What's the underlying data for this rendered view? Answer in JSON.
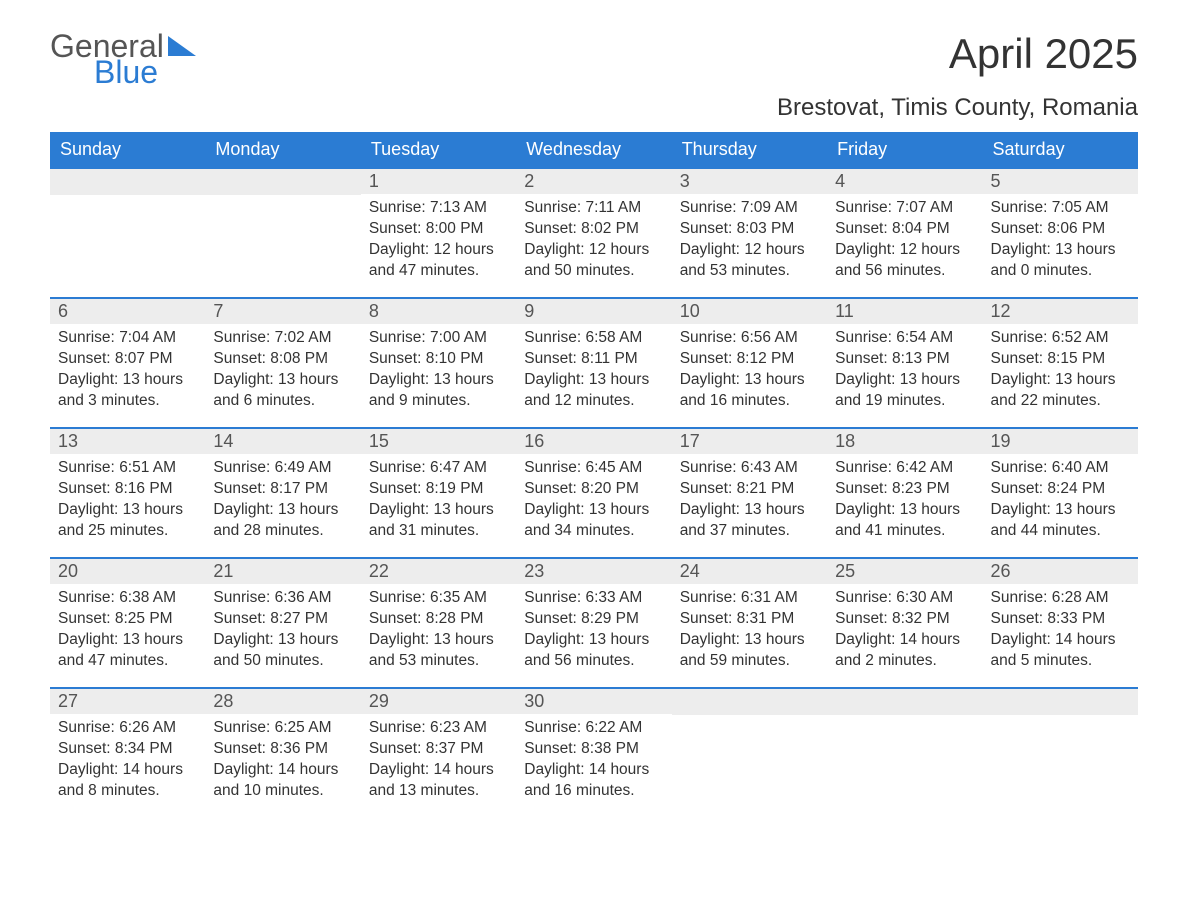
{
  "logo": {
    "part1": "General",
    "part2": "Blue"
  },
  "title": "April 2025",
  "subtitle": "Brestovat, Timis County, Romania",
  "colors": {
    "accent": "#2b7cd3",
    "header_bg": "#2b7cd3",
    "header_text": "#ffffff",
    "daynum_bg": "#ededed",
    "daynum_text": "#555555",
    "body_text": "#333333",
    "page_bg": "#ffffff"
  },
  "layout": {
    "columns": 7,
    "rows": 5,
    "cell_border_top": "2px solid #2b7cd3",
    "title_fontsize": 42,
    "subtitle_fontsize": 24,
    "header_fontsize": 18,
    "daynum_fontsize": 18,
    "body_fontsize": 15.5
  },
  "weekdays": [
    "Sunday",
    "Monday",
    "Tuesday",
    "Wednesday",
    "Thursday",
    "Friday",
    "Saturday"
  ],
  "weeks": [
    [
      null,
      null,
      {
        "n": "1",
        "sunrise": "7:13 AM",
        "sunset": "8:00 PM",
        "daylight": "12 hours and 47 minutes."
      },
      {
        "n": "2",
        "sunrise": "7:11 AM",
        "sunset": "8:02 PM",
        "daylight": "12 hours and 50 minutes."
      },
      {
        "n": "3",
        "sunrise": "7:09 AM",
        "sunset": "8:03 PM",
        "daylight": "12 hours and 53 minutes."
      },
      {
        "n": "4",
        "sunrise": "7:07 AM",
        "sunset": "8:04 PM",
        "daylight": "12 hours and 56 minutes."
      },
      {
        "n": "5",
        "sunrise": "7:05 AM",
        "sunset": "8:06 PM",
        "daylight": "13 hours and 0 minutes."
      }
    ],
    [
      {
        "n": "6",
        "sunrise": "7:04 AM",
        "sunset": "8:07 PM",
        "daylight": "13 hours and 3 minutes."
      },
      {
        "n": "7",
        "sunrise": "7:02 AM",
        "sunset": "8:08 PM",
        "daylight": "13 hours and 6 minutes."
      },
      {
        "n": "8",
        "sunrise": "7:00 AM",
        "sunset": "8:10 PM",
        "daylight": "13 hours and 9 minutes."
      },
      {
        "n": "9",
        "sunrise": "6:58 AM",
        "sunset": "8:11 PM",
        "daylight": "13 hours and 12 minutes."
      },
      {
        "n": "10",
        "sunrise": "6:56 AM",
        "sunset": "8:12 PM",
        "daylight": "13 hours and 16 minutes."
      },
      {
        "n": "11",
        "sunrise": "6:54 AM",
        "sunset": "8:13 PM",
        "daylight": "13 hours and 19 minutes."
      },
      {
        "n": "12",
        "sunrise": "6:52 AM",
        "sunset": "8:15 PM",
        "daylight": "13 hours and 22 minutes."
      }
    ],
    [
      {
        "n": "13",
        "sunrise": "6:51 AM",
        "sunset": "8:16 PM",
        "daylight": "13 hours and 25 minutes."
      },
      {
        "n": "14",
        "sunrise": "6:49 AM",
        "sunset": "8:17 PM",
        "daylight": "13 hours and 28 minutes."
      },
      {
        "n": "15",
        "sunrise": "6:47 AM",
        "sunset": "8:19 PM",
        "daylight": "13 hours and 31 minutes."
      },
      {
        "n": "16",
        "sunrise": "6:45 AM",
        "sunset": "8:20 PM",
        "daylight": "13 hours and 34 minutes."
      },
      {
        "n": "17",
        "sunrise": "6:43 AM",
        "sunset": "8:21 PM",
        "daylight": "13 hours and 37 minutes."
      },
      {
        "n": "18",
        "sunrise": "6:42 AM",
        "sunset": "8:23 PM",
        "daylight": "13 hours and 41 minutes."
      },
      {
        "n": "19",
        "sunrise": "6:40 AM",
        "sunset": "8:24 PM",
        "daylight": "13 hours and 44 minutes."
      }
    ],
    [
      {
        "n": "20",
        "sunrise": "6:38 AM",
        "sunset": "8:25 PM",
        "daylight": "13 hours and 47 minutes."
      },
      {
        "n": "21",
        "sunrise": "6:36 AM",
        "sunset": "8:27 PM",
        "daylight": "13 hours and 50 minutes."
      },
      {
        "n": "22",
        "sunrise": "6:35 AM",
        "sunset": "8:28 PM",
        "daylight": "13 hours and 53 minutes."
      },
      {
        "n": "23",
        "sunrise": "6:33 AM",
        "sunset": "8:29 PM",
        "daylight": "13 hours and 56 minutes."
      },
      {
        "n": "24",
        "sunrise": "6:31 AM",
        "sunset": "8:31 PM",
        "daylight": "13 hours and 59 minutes."
      },
      {
        "n": "25",
        "sunrise": "6:30 AM",
        "sunset": "8:32 PM",
        "daylight": "14 hours and 2 minutes."
      },
      {
        "n": "26",
        "sunrise": "6:28 AM",
        "sunset": "8:33 PM",
        "daylight": "14 hours and 5 minutes."
      }
    ],
    [
      {
        "n": "27",
        "sunrise": "6:26 AM",
        "sunset": "8:34 PM",
        "daylight": "14 hours and 8 minutes."
      },
      {
        "n": "28",
        "sunrise": "6:25 AM",
        "sunset": "8:36 PM",
        "daylight": "14 hours and 10 minutes."
      },
      {
        "n": "29",
        "sunrise": "6:23 AM",
        "sunset": "8:37 PM",
        "daylight": "14 hours and 13 minutes."
      },
      {
        "n": "30",
        "sunrise": "6:22 AM",
        "sunset": "8:38 PM",
        "daylight": "14 hours and 16 minutes."
      },
      null,
      null,
      null
    ]
  ],
  "labels": {
    "sunrise": "Sunrise:",
    "sunset": "Sunset:",
    "daylight": "Daylight:"
  }
}
